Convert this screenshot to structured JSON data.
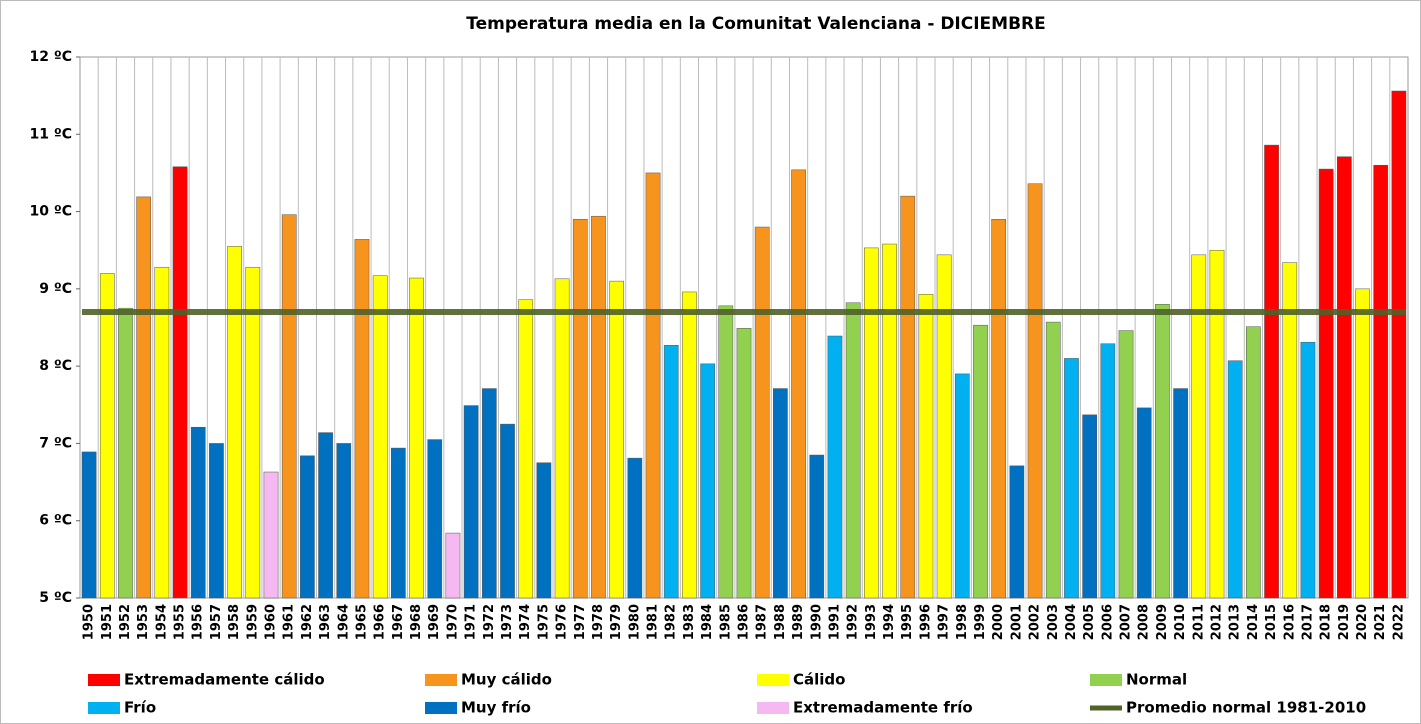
{
  "chart_data": {
    "type": "bar",
    "title": "Temperatura media en la Comunitat Valenciana - DICIEMBRE",
    "categories": [
      "1950",
      "1951",
      "1952",
      "1953",
      "1954",
      "1955",
      "1956",
      "1957",
      "1958",
      "1959",
      "1960",
      "1961",
      "1962",
      "1963",
      "1964",
      "1965",
      "1966",
      "1967",
      "1968",
      "1969",
      "1970",
      "1971",
      "1972",
      "1973",
      "1974",
      "1975",
      "1976",
      "1977",
      "1978",
      "1979",
      "1980",
      "1981",
      "1982",
      "1983",
      "1984",
      "1985",
      "1986",
      "1987",
      "1988",
      "1989",
      "1990",
      "1991",
      "1992",
      "1993",
      "1994",
      "1995",
      "1996",
      "1997",
      "1998",
      "1999",
      "2000",
      "2001",
      "2002",
      "2003",
      "2004",
      "2005",
      "2006",
      "2007",
      "2008",
      "2009",
      "2010",
      "2011",
      "2012",
      "2013",
      "2014",
      "2015",
      "2016",
      "2017",
      "2018",
      "2019",
      "2020",
      "2021",
      "2022"
    ],
    "values": [
      6.89,
      9.2,
      8.75,
      10.19,
      9.28,
      10.58,
      7.21,
      7.0,
      9.55,
      9.28,
      6.63,
      9.96,
      6.84,
      7.14,
      7.0,
      9.64,
      9.17,
      6.94,
      9.14,
      7.05,
      5.84,
      7.49,
      7.71,
      7.25,
      8.86,
      6.75,
      9.13,
      9.9,
      9.94,
      9.1,
      6.81,
      10.5,
      8.27,
      8.96,
      8.03,
      8.78,
      8.49,
      9.8,
      7.71,
      10.54,
      6.85,
      8.39,
      8.82,
      9.53,
      9.58,
      10.2,
      8.93,
      9.44,
      7.9,
      8.53,
      9.9,
      6.71,
      10.36,
      8.57,
      8.1,
      7.37,
      8.29,
      8.46,
      7.46,
      8.8,
      7.71,
      9.44,
      9.5,
      8.07,
      8.51,
      10.86,
      9.34,
      8.31,
      10.55,
      10.71,
      9.0,
      10.6,
      11.56
    ],
    "colors": [
      "#0070c0",
      "#ffff00",
      "#92d050",
      "#f7941d",
      "#ffff00",
      "#ff0000",
      "#0070c0",
      "#0070c0",
      "#ffff00",
      "#ffff00",
      "#f5b8f0",
      "#f7941d",
      "#0070c0",
      "#0070c0",
      "#0070c0",
      "#f7941d",
      "#ffff00",
      "#0070c0",
      "#ffff00",
      "#0070c0",
      "#f5b8f0",
      "#0070c0",
      "#0070c0",
      "#0070c0",
      "#ffff00",
      "#0070c0",
      "#ffff00",
      "#f7941d",
      "#f7941d",
      "#ffff00",
      "#0070c0",
      "#f7941d",
      "#00b0f0",
      "#ffff00",
      "#00b0f0",
      "#92d050",
      "#92d050",
      "#f7941d",
      "#0070c0",
      "#f7941d",
      "#0070c0",
      "#00b0f0",
      "#92d050",
      "#ffff00",
      "#ffff00",
      "#f7941d",
      "#ffff00",
      "#ffff00",
      "#00b0f0",
      "#92d050",
      "#f7941d",
      "#0070c0",
      "#f7941d",
      "#92d050",
      "#00b0f0",
      "#0070c0",
      "#00b0f0",
      "#92d050",
      "#0070c0",
      "#92d050",
      "#0070c0",
      "#ffff00",
      "#ffff00",
      "#00b0f0",
      "#92d050",
      "#ff0000",
      "#ffff00",
      "#00b0f0",
      "#ff0000",
      "#ff0000",
      "#ffff00",
      "#ff0000",
      "#ff0000"
    ],
    "legend": [
      {
        "name": "Extremadamente cálido",
        "color": "#ff0000"
      },
      {
        "name": "Muy cálido",
        "color": "#f7941d"
      },
      {
        "name": "Cálido",
        "color": "#ffff00"
      },
      {
        "name": "Normal",
        "color": "#92d050"
      },
      {
        "name": "Frío",
        "color": "#00b0f0"
      },
      {
        "name": "Muy frío",
        "color": "#0070c0"
      },
      {
        "name": "Extremadamente frío",
        "color": "#f5b8f0"
      }
    ],
    "average": {
      "name": "Promedio normal 1981-2010",
      "value": 8.7,
      "color": "#4f6228"
    },
    "ylim": [
      5,
      12
    ],
    "yticks": [
      {
        "value": 5,
        "label": "5 ºC"
      },
      {
        "value": 6,
        "label": "6 ºC"
      },
      {
        "value": 7,
        "label": "7 ºC"
      },
      {
        "value": 8,
        "label": "8 ºC"
      },
      {
        "value": 9,
        "label": "9 ºC"
      },
      {
        "value": 10,
        "label": "10 ºC"
      },
      {
        "value": 11,
        "label": "11 ºC"
      },
      {
        "value": 12,
        "label": "12 ºC"
      }
    ]
  }
}
